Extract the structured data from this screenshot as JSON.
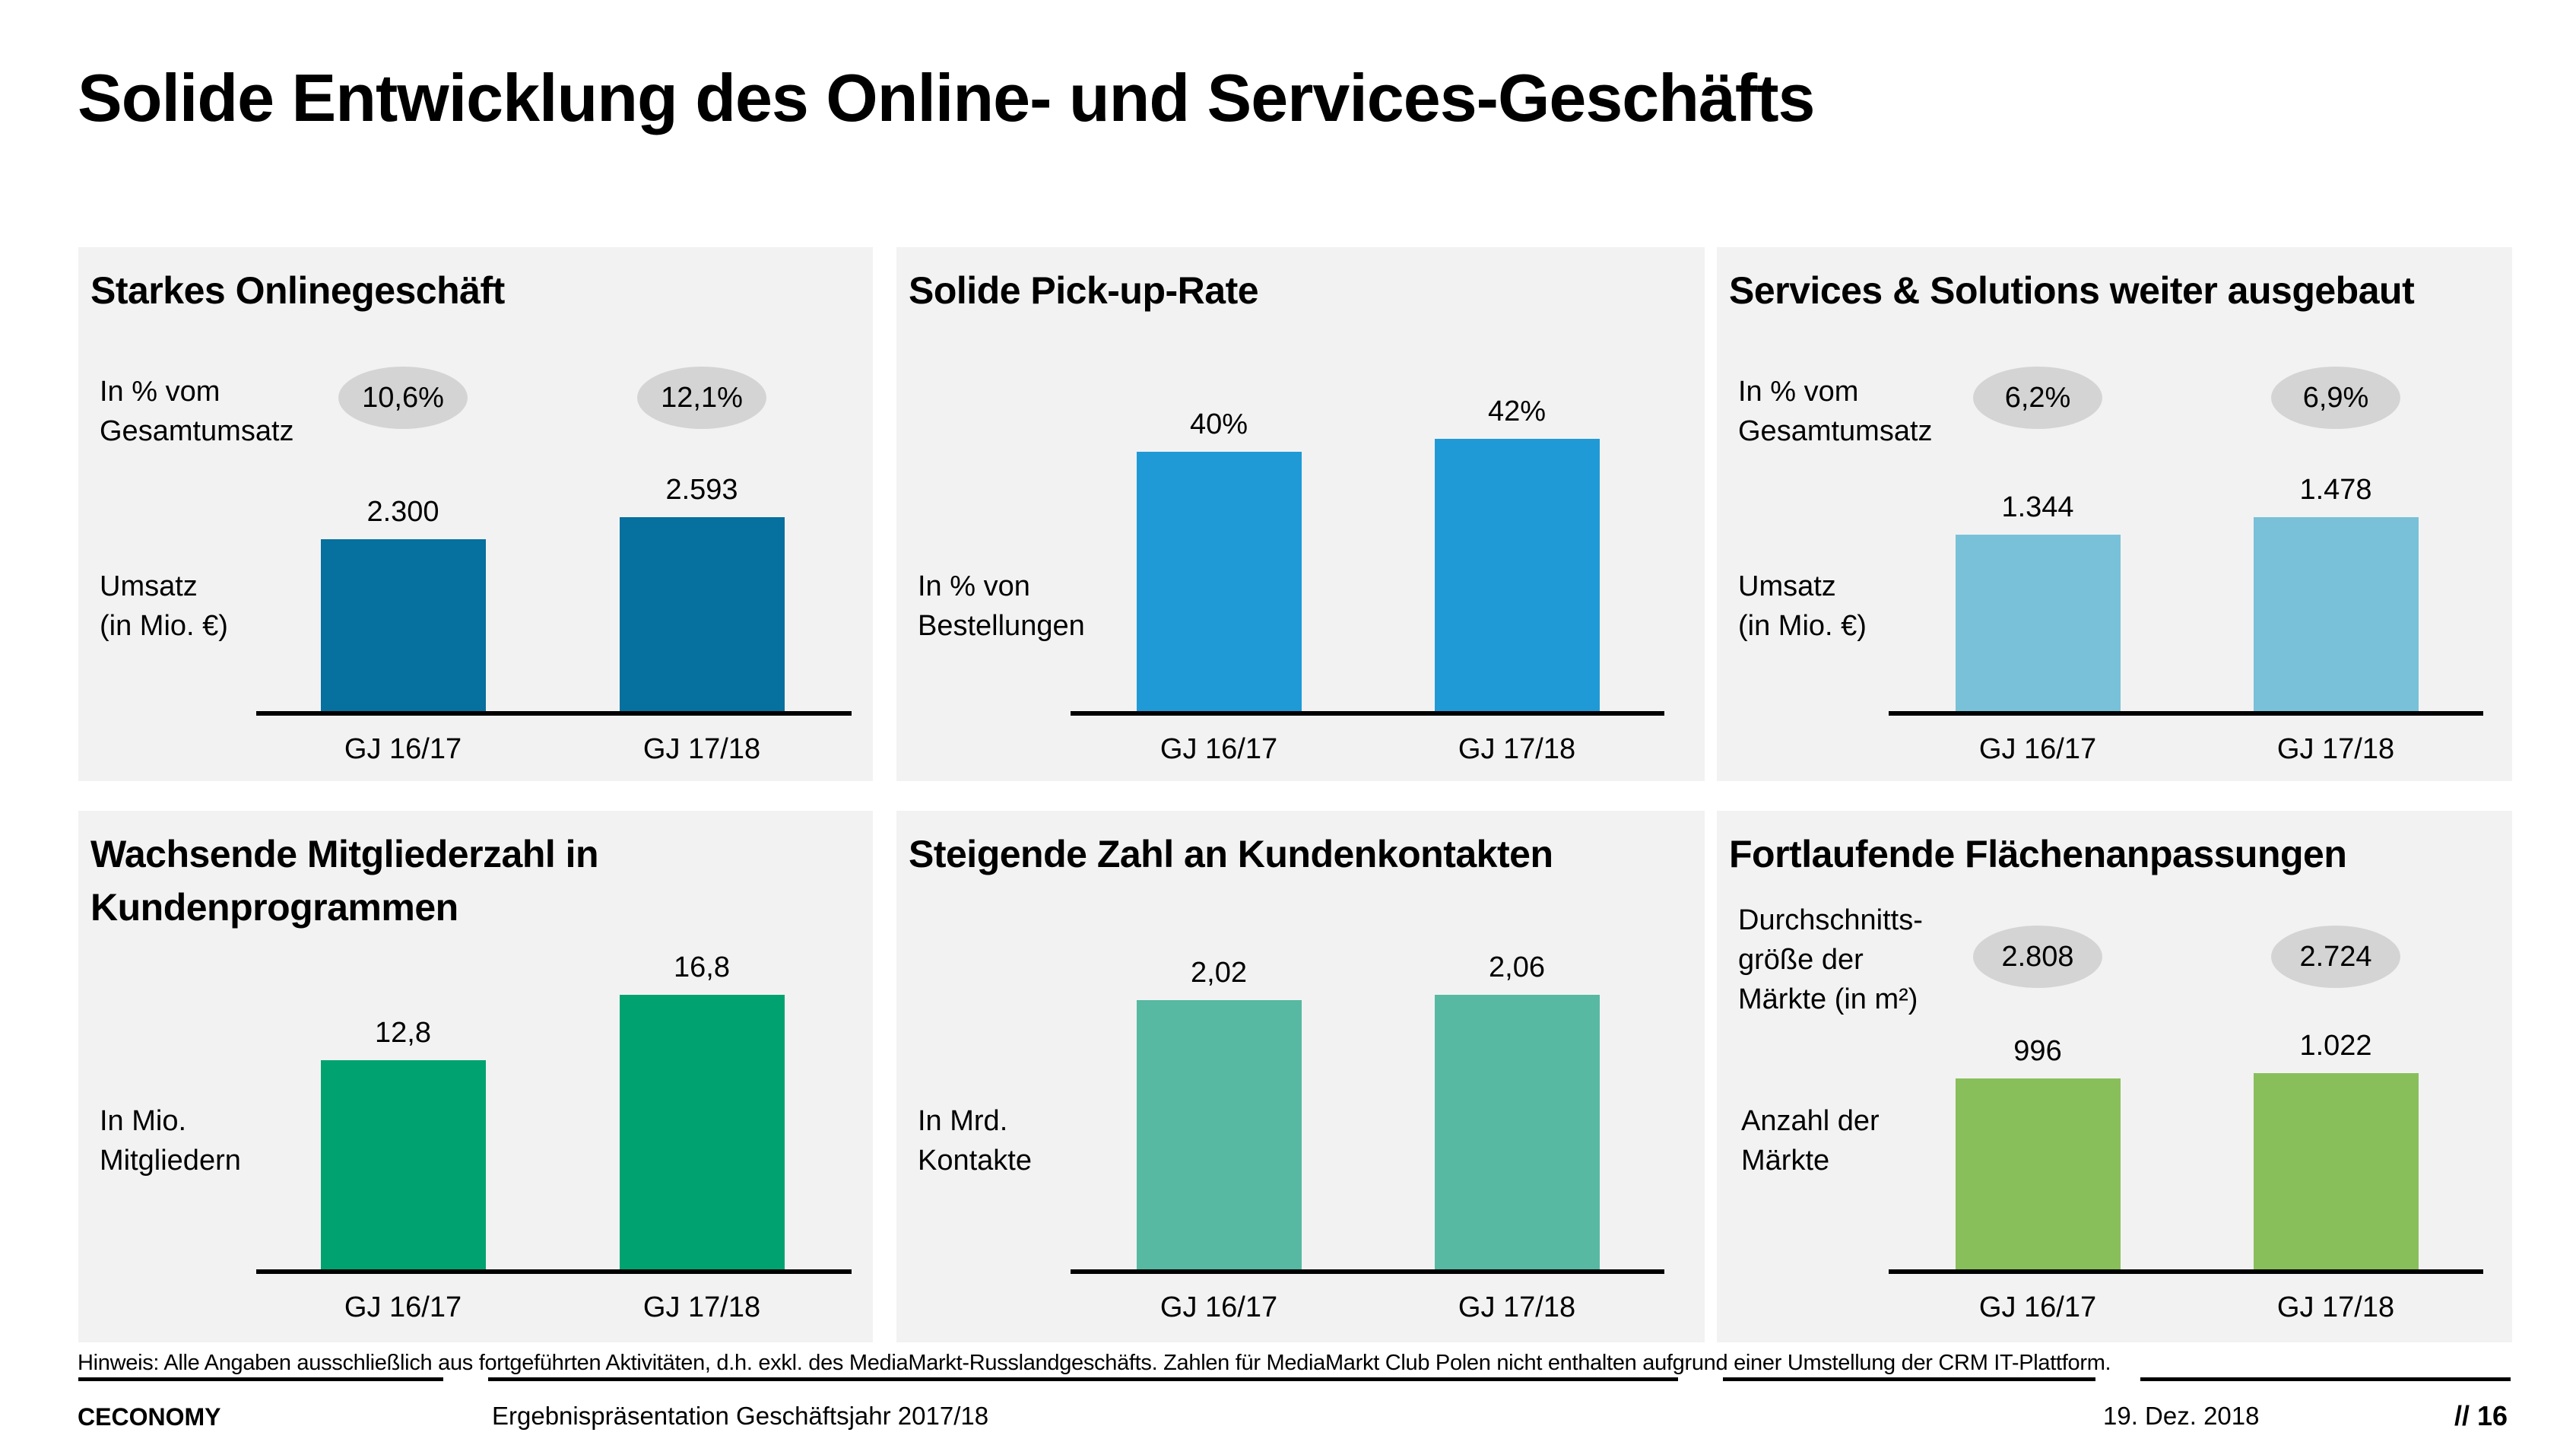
{
  "page": {
    "title": "Solide Entwicklung des Online- und Services-Geschäfts"
  },
  "chart_data": [
    {
      "type": "bar",
      "title": "Starkes Onlinegeschäft",
      "categories": [
        "GJ 16/17",
        "GJ 17/18"
      ],
      "values": [
        2300,
        2593
      ],
      "value_labels": [
        "2.300",
        "2.593"
      ],
      "ylabel": [
        "Umsatz",
        "(in Mio. €)"
      ],
      "bubble_label": [
        "In % vom",
        "Gesamtumsatz"
      ],
      "bubbles": [
        "10,6%",
        "12,1%"
      ],
      "color": "#06709e"
    },
    {
      "type": "bar",
      "title": "Solide Pick-up-Rate",
      "categories": [
        "GJ 16/17",
        "GJ 17/18"
      ],
      "values": [
        40,
        42
      ],
      "value_labels": [
        "40%",
        "42%"
      ],
      "ylabel": [
        "In % von",
        "Bestellungen"
      ],
      "color": "#1f9ad6"
    },
    {
      "type": "bar",
      "title": "Services & Solutions weiter ausgebaut",
      "categories": [
        "GJ 16/17",
        "GJ 17/18"
      ],
      "values": [
        1344,
        1478
      ],
      "value_labels": [
        "1.344",
        "1.478"
      ],
      "ylabel": [
        "Umsatz",
        "(in Mio. €)"
      ],
      "bubble_label": [
        "In % vom",
        "Gesamtumsatz"
      ],
      "bubbles": [
        "6,2%",
        "6,9%"
      ],
      "color": "#78c1d8"
    },
    {
      "type": "bar",
      "title": [
        "Wachsende Mitgliederzahl in",
        "Kundenprogrammen"
      ],
      "categories": [
        "GJ 16/17",
        "GJ 17/18"
      ],
      "values": [
        12.8,
        16.8
      ],
      "value_labels": [
        "12,8",
        "16,8"
      ],
      "ylabel": [
        "In Mio.",
        "Mitgliedern"
      ],
      "color": "#00a370"
    },
    {
      "type": "bar",
      "title": "Steigende Zahl an Kundenkontakten",
      "categories": [
        "GJ 16/17",
        "GJ 17/18"
      ],
      "values": [
        2.02,
        2.06
      ],
      "value_labels": [
        "2,02",
        "2,06"
      ],
      "ylabel": [
        "In Mrd.",
        "Kontakte"
      ],
      "color": "#57b9a2"
    },
    {
      "type": "bar",
      "title": "Fortlaufende Flächenanpassungen",
      "categories": [
        "GJ 16/17",
        "GJ 17/18"
      ],
      "values": [
        996,
        1022
      ],
      "value_labels": [
        "996",
        "1.022"
      ],
      "ylabel": [
        "Anzahl der",
        "Märkte"
      ],
      "bubble_label": [
        "Durchschnitts-",
        "größe der",
        "Märkte (in m²)"
      ],
      "bubbles": [
        "2.808",
        "2.724"
      ],
      "color": "#88bf5a"
    }
  ],
  "footer": {
    "note": "Hinweis: Alle Angaben ausschließlich aus fortgeführten Aktivitäten, d.h. exkl. des MediaMarkt-Russlandgeschäfts. Zahlen für MediaMarkt Club Polen nicht enthalten aufgrund einer Umstellung der CRM IT-Plattform.",
    "brand": "CECONOMY",
    "presentation": "Ergebnispräsentation Geschäftsjahr 2017/18",
    "date": "19. Dez. 2018",
    "page_number": "// 16"
  }
}
